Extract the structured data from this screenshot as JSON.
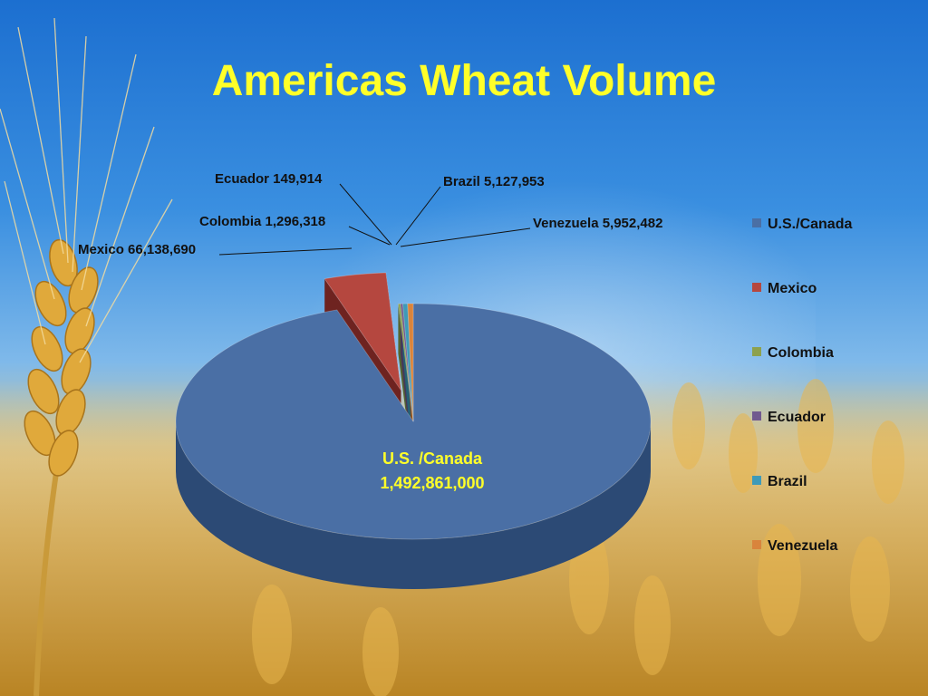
{
  "slide": {
    "title": "Americas Wheat Volume"
  },
  "colors": {
    "title": "#ffff29",
    "sky_top": "#1c6fd0",
    "wheat": "#d9a93c"
  },
  "chart_data": {
    "type": "pie",
    "style": "3d-exploded",
    "title": "Americas Wheat Volume",
    "legend_position": "right",
    "slices": [
      {
        "name": "U.S./Canada",
        "value": 1492861000,
        "color": "#4a6fa5",
        "side": "#2c4a75",
        "label": "",
        "inner_label": [
          "U.S. /Canada",
          "1,492,861,000"
        ]
      },
      {
        "name": "Mexico",
        "value": 66138690,
        "color": "#b5473f",
        "side": "#6e2320",
        "label": "Mexico 66,138,690"
      },
      {
        "name": "Colombia",
        "value": 1296318,
        "color": "#8da14e",
        "side": "#566530",
        "label": "Colombia 1,296,318"
      },
      {
        "name": "Ecuador",
        "value": 149914,
        "color": "#71598f",
        "side": "#463859",
        "label": "Ecuador 149,914"
      },
      {
        "name": "Brazil",
        "value": 5127953,
        "color": "#3f9ab8",
        "side": "#256075",
        "label": "Brazil 5,127,953"
      },
      {
        "name": "Venezuela",
        "value": 5952482,
        "color": "#d9843c",
        "side": "#8a4f1e",
        "label": "Venezuela 5,952,482"
      }
    ]
  }
}
